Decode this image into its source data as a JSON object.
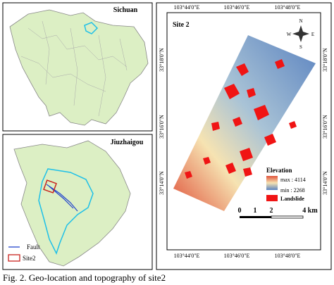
{
  "sichuan_panel": {
    "title": "Sichuan"
  },
  "jiuzhaigou_panel": {
    "title": "Jiuzhaigou",
    "legend": [
      "Fault",
      "Site2"
    ]
  },
  "site_panel": {
    "title": "Site 2",
    "longitudes": [
      "103°44'0\"E",
      "103°46'0\"E",
      "103°48'0\"E"
    ],
    "latitudes": [
      "33°18'0\"N",
      "33°16'0\"N",
      "33°14'0\"N"
    ],
    "compass": [
      "N",
      "S",
      "E",
      "W"
    ],
    "legend": {
      "title": "Elevation",
      "max": "max : 4114",
      "min": "min : 2268",
      "landslide": "Landslide"
    },
    "scale": [
      "0",
      "1",
      "2",
      "4 km"
    ]
  },
  "caption": "Fig. 2. Geo-location and topography of site2"
}
